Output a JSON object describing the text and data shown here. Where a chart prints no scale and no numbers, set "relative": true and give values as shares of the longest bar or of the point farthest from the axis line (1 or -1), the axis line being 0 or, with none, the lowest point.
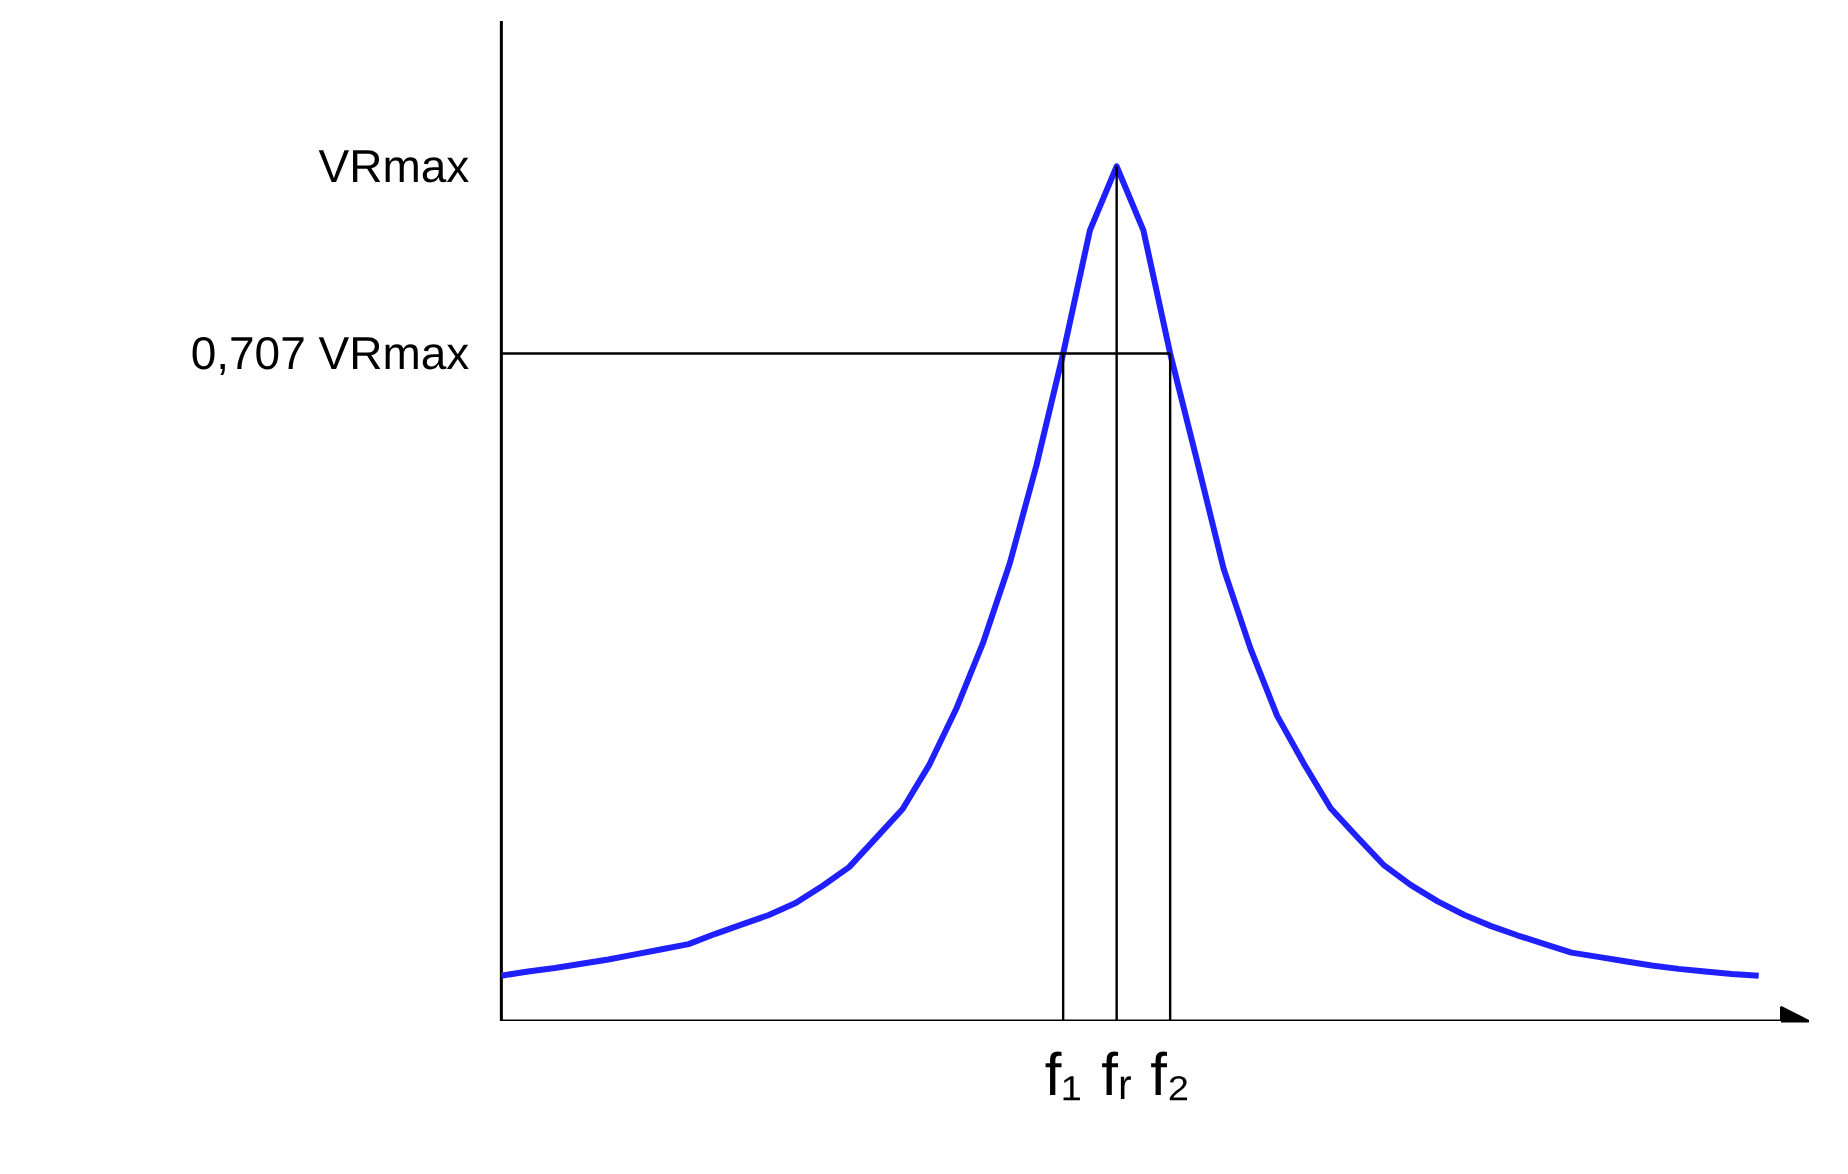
{
  "chart_data": {
    "type": "line",
    "relative": true,
    "categories": [
      null,
      null,
      null,
      null,
      null,
      null,
      null,
      null,
      null,
      null,
      null,
      null,
      null,
      null,
      null,
      null,
      null,
      null,
      null,
      null,
      null,
      "f₁",
      null,
      "fᵣ",
      null,
      "f₂",
      null,
      null,
      null,
      null,
      null,
      null,
      null,
      null,
      null,
      null,
      null,
      null,
      null,
      null,
      null,
      null,
      null,
      null,
      null,
      null,
      null,
      null
    ],
    "series": [
      {
        "color": "#2020ff",
        "values": [
          0.053,
          0.058,
          0.062,
          0.067,
          0.072,
          0.078,
          0.084,
          0.09,
          0.102,
          0.113,
          0.124,
          0.138,
          0.158,
          0.18,
          0.214,
          0.248,
          0.3,
          0.365,
          0.442,
          0.535,
          0.65,
          0.781,
          0.925,
          1,
          0.925,
          0.781,
          0.656,
          0.529,
          0.436,
          0.357,
          0.301,
          0.249,
          0.215,
          0.182,
          0.159,
          0.14,
          0.124,
          0.111,
          0.1,
          0.09,
          0.08,
          0.075,
          0.07,
          0.065,
          0.061,
          0.058,
          0.055,
          0.053
        ]
      }
    ],
    "annotations": [
      "VRmax"
    ],
    "ref_lines": [
      {
        "axis": "y",
        "value": 0.781,
        "color": "#000000",
        "label": "0,707 VRmax"
      },
      {
        "axis": "x",
        "value": "f₁",
        "color": "#000000"
      },
      {
        "axis": "x",
        "value": "fᵣ",
        "color": "#000000"
      },
      {
        "axis": "x",
        "value": "f₂",
        "color": "#000000"
      }
    ],
    "marker": "none",
    "line_style": "solid"
  }
}
